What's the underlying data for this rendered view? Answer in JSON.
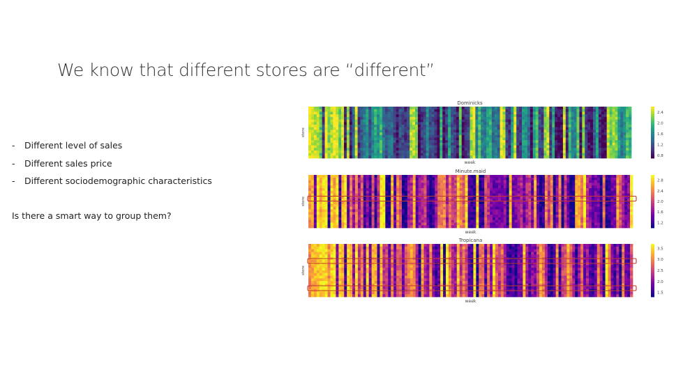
{
  "slide": {
    "title": "We know that different stores are “different”",
    "bullets": [
      "Different level of sales",
      "Different sales price",
      "Different sociodemographic characteristics"
    ],
    "question": "Is there a smart way to group them?"
  },
  "highlight_color": "#c0392b",
  "chart_data": [
    {
      "type": "heatmap",
      "title": "Dominicks",
      "xlabel": "week",
      "ylabel": "store",
      "colormap": "viridis",
      "colorbar_ticks": [
        2.4,
        2.0,
        1.6,
        1.2,
        0.8
      ],
      "vmin": 0.7,
      "vmax": 2.6
    },
    {
      "type": "heatmap",
      "title": "Minute.maid",
      "xlabel": "week",
      "ylabel": "store",
      "colormap": "plasma",
      "colorbar_ticks": [
        2.8,
        2.4,
        2.0,
        1.6,
        1.2
      ],
      "vmin": 1.0,
      "vmax": 3.0,
      "highlighted_store_rows": 1
    },
    {
      "type": "heatmap",
      "title": "Tropicana",
      "xlabel": "week",
      "ylabel": "store",
      "colormap": "plasma",
      "colorbar_ticks": [
        3.5,
        3.0,
        2.5,
        2.0,
        1.5
      ],
      "vmin": 1.3,
      "vmax": 3.7,
      "highlighted_store_rows": 2
    }
  ]
}
